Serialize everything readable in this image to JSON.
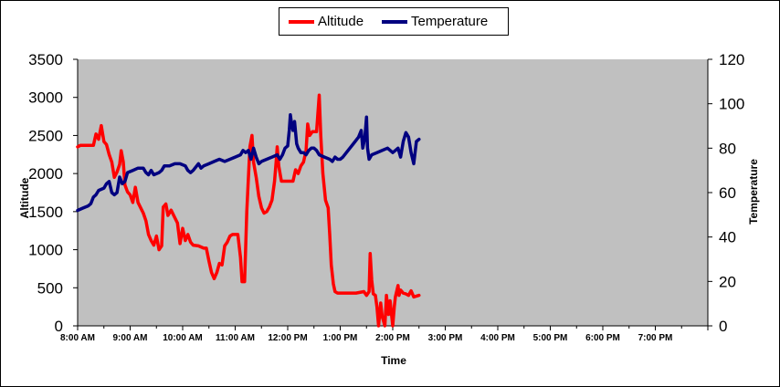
{
  "chart_data": {
    "type": "line",
    "title": "",
    "xlabel": "Time",
    "ylabel_left": "Altitude",
    "ylabel_right": "Temperature",
    "ylim_left": [
      0,
      3500
    ],
    "ylim_right": [
      0,
      120
    ],
    "yticks_left": [
      "0",
      "500",
      "1000",
      "1500",
      "2000",
      "2500",
      "3000",
      "3500"
    ],
    "yticks_right": [
      "0",
      "20",
      "40",
      "60",
      "80",
      "100",
      "120"
    ],
    "xticks": [
      "8:00 AM",
      "9:00 AM",
      "10:00 AM",
      "11:00 AM",
      "12:00 PM",
      "1:00 PM",
      "2:00 PM",
      "3:00 PM",
      "4:00 PM",
      "5:00 PM",
      "6:00 PM",
      "7:00 PM"
    ],
    "xlim_hours": [
      8,
      20
    ],
    "grid": false,
    "legend_position": "top",
    "plot_background": "#c0c0c0",
    "series": [
      {
        "name": "Altitude",
        "axis": "left",
        "color": "#ff0000",
        "points": [
          [
            8.0,
            2350
          ],
          [
            8.05,
            2370
          ],
          [
            8.2,
            2370
          ],
          [
            8.3,
            2370
          ],
          [
            8.35,
            2520
          ],
          [
            8.4,
            2450
          ],
          [
            8.45,
            2630
          ],
          [
            8.5,
            2420
          ],
          [
            8.55,
            2380
          ],
          [
            8.6,
            2250
          ],
          [
            8.65,
            2150
          ],
          [
            8.7,
            1950
          ],
          [
            8.75,
            2020
          ],
          [
            8.8,
            2120
          ],
          [
            8.83,
            2300
          ],
          [
            8.87,
            2150
          ],
          [
            8.9,
            1850
          ],
          [
            8.95,
            1760
          ],
          [
            9.0,
            1720
          ],
          [
            9.05,
            1620
          ],
          [
            9.1,
            1820
          ],
          [
            9.15,
            1620
          ],
          [
            9.2,
            1550
          ],
          [
            9.25,
            1480
          ],
          [
            9.3,
            1380
          ],
          [
            9.35,
            1200
          ],
          [
            9.4,
            1120
          ],
          [
            9.45,
            1060
          ],
          [
            9.5,
            1180
          ],
          [
            9.55,
            1000
          ],
          [
            9.6,
            1050
          ],
          [
            9.63,
            1560
          ],
          [
            9.68,
            1600
          ],
          [
            9.72,
            1450
          ],
          [
            9.78,
            1520
          ],
          [
            9.85,
            1420
          ],
          [
            9.9,
            1350
          ],
          [
            9.95,
            1080
          ],
          [
            10.0,
            1280
          ],
          [
            10.05,
            1120
          ],
          [
            10.1,
            1200
          ],
          [
            10.15,
            1100
          ],
          [
            10.2,
            1060
          ],
          [
            10.3,
            1050
          ],
          [
            10.4,
            1020
          ],
          [
            10.45,
            1020
          ],
          [
            10.5,
            850
          ],
          [
            10.55,
            700
          ],
          [
            10.6,
            620
          ],
          [
            10.65,
            700
          ],
          [
            10.7,
            820
          ],
          [
            10.75,
            800
          ],
          [
            10.8,
            1050
          ],
          [
            10.85,
            1100
          ],
          [
            10.9,
            1180
          ],
          [
            10.95,
            1200
          ],
          [
            11.05,
            1200
          ],
          [
            11.1,
            900
          ],
          [
            11.13,
            580
          ],
          [
            11.18,
            580
          ],
          [
            11.22,
            1500
          ],
          [
            11.28,
            2350
          ],
          [
            11.32,
            2500
          ],
          [
            11.35,
            2150
          ],
          [
            11.4,
            1950
          ],
          [
            11.45,
            1700
          ],
          [
            11.5,
            1550
          ],
          [
            11.55,
            1480
          ],
          [
            11.6,
            1500
          ],
          [
            11.65,
            1560
          ],
          [
            11.7,
            1650
          ],
          [
            11.75,
            1900
          ],
          [
            11.78,
            2150
          ],
          [
            11.8,
            2350
          ],
          [
            11.83,
            2100
          ],
          [
            11.88,
            1900
          ],
          [
            11.95,
            1900
          ],
          [
            12.1,
            1900
          ],
          [
            12.15,
            2050
          ],
          [
            12.2,
            2000
          ],
          [
            12.25,
            2100
          ],
          [
            12.3,
            2150
          ],
          [
            12.35,
            2300
          ],
          [
            12.38,
            2650
          ],
          [
            12.42,
            2500
          ],
          [
            12.47,
            2550
          ],
          [
            12.55,
            2550
          ],
          [
            12.6,
            3030
          ],
          [
            12.63,
            2500
          ],
          [
            12.67,
            2000
          ],
          [
            12.72,
            1650
          ],
          [
            12.77,
            1550
          ],
          [
            12.8,
            1200
          ],
          [
            12.83,
            800
          ],
          [
            12.87,
            550
          ],
          [
            12.9,
            450
          ],
          [
            12.95,
            430
          ],
          [
            13.05,
            430
          ],
          [
            13.15,
            430
          ],
          [
            13.3,
            430
          ],
          [
            13.45,
            450
          ],
          [
            13.5,
            400
          ],
          [
            13.55,
            450
          ],
          [
            13.57,
            950
          ],
          [
            13.6,
            600
          ],
          [
            13.63,
            420
          ],
          [
            13.67,
            400
          ],
          [
            13.7,
            250
          ],
          [
            13.73,
            0
          ],
          [
            13.77,
            300
          ],
          [
            13.8,
            120
          ],
          [
            13.85,
            0
          ],
          [
            13.88,
            400
          ],
          [
            13.92,
            150
          ],
          [
            13.95,
            330
          ],
          [
            14.0,
            0
          ],
          [
            14.03,
            250
          ],
          [
            14.05,
            380
          ],
          [
            14.1,
            530
          ],
          [
            14.12,
            400
          ],
          [
            14.15,
            470
          ],
          [
            14.2,
            430
          ],
          [
            14.25,
            420
          ],
          [
            14.3,
            400
          ],
          [
            14.35,
            460
          ],
          [
            14.4,
            380
          ],
          [
            14.5,
            400
          ]
        ]
      },
      {
        "name": "Temperature",
        "axis": "right",
        "color": "#000080",
        "points": [
          [
            8.0,
            52
          ],
          [
            8.1,
            53
          ],
          [
            8.2,
            54
          ],
          [
            8.25,
            55
          ],
          [
            8.3,
            58
          ],
          [
            8.35,
            59
          ],
          [
            8.4,
            61
          ],
          [
            8.5,
            62
          ],
          [
            8.55,
            64
          ],
          [
            8.6,
            65
          ],
          [
            8.65,
            60
          ],
          [
            8.7,
            59
          ],
          [
            8.75,
            60
          ],
          [
            8.8,
            67
          ],
          [
            8.85,
            64
          ],
          [
            8.9,
            65
          ],
          [
            8.95,
            69
          ],
          [
            9.05,
            70
          ],
          [
            9.15,
            71
          ],
          [
            9.25,
            71
          ],
          [
            9.3,
            69
          ],
          [
            9.35,
            68
          ],
          [
            9.4,
            70
          ],
          [
            9.45,
            68
          ],
          [
            9.55,
            69
          ],
          [
            9.6,
            70
          ],
          [
            9.65,
            72
          ],
          [
            9.75,
            72
          ],
          [
            9.85,
            73
          ],
          [
            9.95,
            73
          ],
          [
            10.05,
            72
          ],
          [
            10.1,
            70
          ],
          [
            10.15,
            69
          ],
          [
            10.2,
            70
          ],
          [
            10.3,
            73
          ],
          [
            10.35,
            71
          ],
          [
            10.4,
            72
          ],
          [
            10.5,
            73
          ],
          [
            10.6,
            74
          ],
          [
            10.7,
            75
          ],
          [
            10.8,
            74
          ],
          [
            10.9,
            75
          ],
          [
            11.0,
            76
          ],
          [
            11.1,
            77
          ],
          [
            11.15,
            79
          ],
          [
            11.2,
            78
          ],
          [
            11.25,
            79
          ],
          [
            11.3,
            75
          ],
          [
            11.35,
            80
          ],
          [
            11.4,
            76
          ],
          [
            11.45,
            73
          ],
          [
            11.5,
            74
          ],
          [
            11.6,
            75
          ],
          [
            11.7,
            76
          ],
          [
            11.8,
            77
          ],
          [
            11.85,
            75
          ],
          [
            11.9,
            77
          ],
          [
            11.95,
            80
          ],
          [
            12.0,
            81
          ],
          [
            12.03,
            88
          ],
          [
            12.05,
            95
          ],
          [
            12.08,
            90
          ],
          [
            12.1,
            88
          ],
          [
            12.13,
            92
          ],
          [
            12.17,
            82
          ],
          [
            12.2,
            80
          ],
          [
            12.25,
            78
          ],
          [
            12.3,
            78
          ],
          [
            12.35,
            77
          ],
          [
            12.4,
            79
          ],
          [
            12.45,
            80
          ],
          [
            12.5,
            80
          ],
          [
            12.55,
            79
          ],
          [
            12.6,
            77
          ],
          [
            12.7,
            76
          ],
          [
            12.8,
            75
          ],
          [
            12.85,
            74
          ],
          [
            12.9,
            76
          ],
          [
            12.95,
            75
          ],
          [
            13.0,
            75
          ],
          [
            13.05,
            76
          ],
          [
            13.15,
            79
          ],
          [
            13.25,
            82
          ],
          [
            13.35,
            85
          ],
          [
            13.4,
            88
          ],
          [
            13.43,
            80
          ],
          [
            13.47,
            85
          ],
          [
            13.5,
            94
          ],
          [
            13.52,
            80
          ],
          [
            13.55,
            75
          ],
          [
            13.6,
            77
          ],
          [
            13.7,
            78
          ],
          [
            13.8,
            79
          ],
          [
            13.9,
            80
          ],
          [
            14.0,
            78
          ],
          [
            14.05,
            79
          ],
          [
            14.1,
            80
          ],
          [
            14.15,
            76
          ],
          [
            14.2,
            83
          ],
          [
            14.25,
            87
          ],
          [
            14.3,
            85
          ],
          [
            14.35,
            78
          ],
          [
            14.4,
            73
          ],
          [
            14.45,
            83
          ],
          [
            14.5,
            84
          ]
        ]
      }
    ]
  }
}
